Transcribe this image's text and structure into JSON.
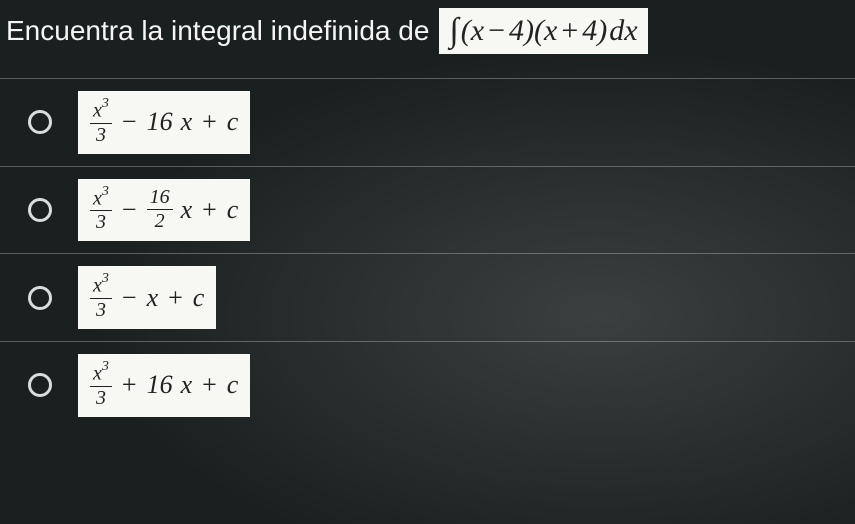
{
  "question": {
    "prompt_text": "Encuentra la integral indefinida  de",
    "integral_symbol": "∫",
    "expr_lparen": "(",
    "expr_x1": "x",
    "expr_minus": "−",
    "expr_4a": "4",
    "expr_rparen1": ")",
    "expr_lparen2": "(",
    "expr_x2": "x",
    "expr_plus": "+",
    "expr_4b": "4",
    "expr_rparen2": ")",
    "expr_dx": "dx"
  },
  "colors": {
    "page_bg": "#1a1f1f",
    "text_light": "#f5f5f5",
    "box_bg": "#f7f7f4",
    "box_text": "#222222",
    "divider": "rgba(255,255,255,0.28)",
    "radio_border": "#d9dddd"
  },
  "options": {
    "a": {
      "num": "x",
      "exp": "3",
      "den": "3",
      "minus": "−",
      "coef": "16",
      "x": "x",
      "plus": "+",
      "c": "c"
    },
    "b": {
      "num1": "x",
      "exp1": "3",
      "den1": "3",
      "minus": "−",
      "num2": "16",
      "den2": "2",
      "x": "x",
      "plus": "+",
      "c": "c"
    },
    "c": {
      "num": "x",
      "exp": "3",
      "den": "3",
      "minus": "−",
      "x": "x",
      "plus": "+",
      "c": "c"
    },
    "d": {
      "num": "x",
      "exp": "3",
      "den": "3",
      "plus1": "+",
      "coef": "16",
      "x": "x",
      "plus2": "+",
      "c": "c"
    }
  }
}
